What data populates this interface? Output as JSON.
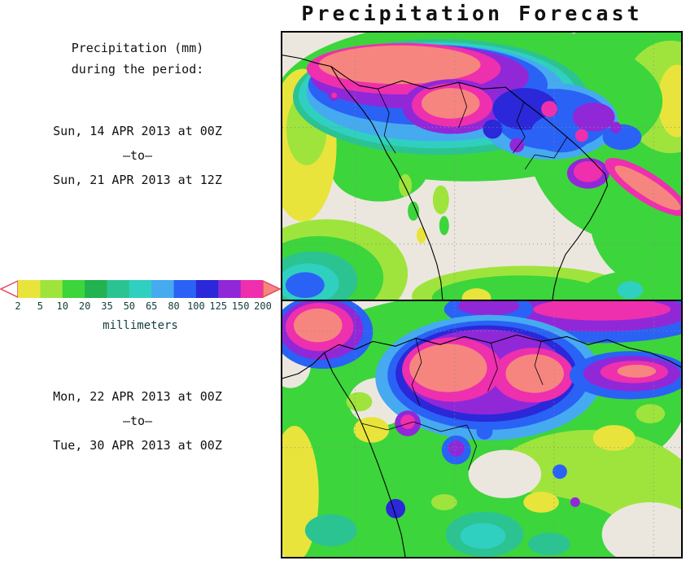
{
  "title": "Precipitation Forecast",
  "sidebar": {
    "heading_line1": "Precipitation (mm)",
    "heading_line2": "during the period:",
    "period1_start": "Sun, 14 APR 2013 at 00Z",
    "period1_separator": "–to–",
    "period1_end": "Sun, 21 APR 2013 at 12Z",
    "period2_start": "Mon, 22 APR 2013 at 00Z",
    "period2_separator": "–to–",
    "period2_end": "Tue, 30 APR 2013 at 00Z"
  },
  "legend": {
    "unit_label": "millimeters",
    "ticks": [
      "2",
      "5",
      "10",
      "20",
      "35",
      "50",
      "65",
      "80",
      "100",
      "125",
      "150",
      "200"
    ],
    "box_colors": [
      "#e8e43c",
      "#9fe43c",
      "#3cd53c",
      "#22b250",
      "#2cc392",
      "#2fd0c0",
      "#46aaf0",
      "#2a62f5",
      "#2a28d8",
      "#9028d8",
      "#ee2fae"
    ],
    "under_min_color": "#ffffff",
    "over_max_color": "#f6857f",
    "outline_color": "#e5485a",
    "tick_color": "#143c3c"
  }
}
